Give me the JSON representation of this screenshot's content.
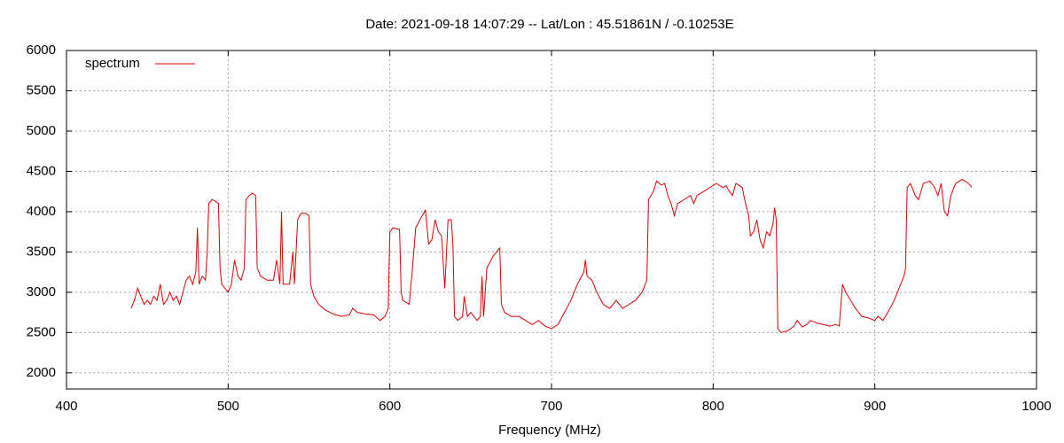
{
  "chart_data": {
    "type": "line",
    "title": "Date: 2021-09-18 14:07:29  --  Lat/Lon : 45.51861N / -0.10253E",
    "xlabel": "Frequency (MHz)",
    "xlim": [
      400,
      1000
    ],
    "xticks": [
      400,
      500,
      600,
      700,
      800,
      900,
      1000
    ],
    "ylim": [
      1800,
      6000
    ],
    "yticks": [
      2000,
      2500,
      3000,
      3500,
      4000,
      4500,
      5000,
      5500,
      6000
    ],
    "grid": true,
    "legend_position": "upper left",
    "series": [
      {
        "name": "spectrum",
        "color": "#dd0000",
        "x": [
          440,
          442,
          444,
          446,
          448,
          450,
          452,
          454,
          456,
          458,
          460,
          462,
          464,
          466,
          468,
          470,
          472,
          474,
          476,
          478,
          480,
          481,
          482,
          484,
          486,
          487,
          488,
          490,
          492,
          494,
          495,
          496,
          498,
          500,
          502,
          504,
          506,
          508,
          510,
          511,
          513,
          515,
          517,
          518,
          520,
          524,
          528,
          530,
          532,
          533,
          534,
          538,
          540,
          541,
          543,
          545,
          548,
          550,
          551,
          553,
          556,
          560,
          565,
          570,
          575,
          577,
          580,
          585,
          590,
          594,
          597,
          599,
          600,
          602,
          606,
          607,
          608,
          612,
          614,
          616,
          620,
          622,
          624,
          626,
          628,
          630,
          632,
          634,
          636,
          638,
          639,
          640,
          642,
          645,
          646,
          648,
          650,
          654,
          656,
          657,
          658,
          660,
          664,
          668,
          669,
          671,
          675,
          680,
          684,
          688,
          692,
          696,
          700,
          704,
          708,
          712,
          716,
          720,
          721,
          722,
          725,
          728,
          732,
          736,
          740,
          744,
          748,
          752,
          756,
          759,
          760,
          763,
          765,
          768,
          770,
          772,
          774,
          776,
          778,
          782,
          786,
          788,
          790,
          794,
          798,
          802,
          806,
          808,
          810,
          812,
          814,
          818,
          820,
          822,
          823,
          825,
          827,
          829,
          831,
          833,
          835,
          837,
          838,
          839,
          840,
          842,
          846,
          850,
          852,
          855,
          858,
          860,
          864,
          868,
          872,
          876,
          878,
          880,
          882,
          885,
          888,
          892,
          896,
          900,
          902,
          905,
          908,
          912,
          916,
          918,
          919,
          920,
          922,
          925,
          927,
          930,
          934,
          937,
          939,
          941,
          943,
          945,
          947,
          950,
          954,
          958,
          960
        ],
        "values": [
          2800,
          2900,
          3050,
          2950,
          2850,
          2900,
          2850,
          2950,
          2900,
          3100,
          2850,
          2900,
          3000,
          2900,
          2950,
          2850,
          3000,
          3150,
          3200,
          3100,
          3250,
          3800,
          3100,
          3200,
          3150,
          3500,
          4100,
          4150,
          4130,
          4100,
          3300,
          3100,
          3050,
          3000,
          3100,
          3400,
          3200,
          3150,
          3300,
          4150,
          4200,
          4230,
          4200,
          3300,
          3200,
          3150,
          3150,
          3400,
          3100,
          4000,
          3100,
          3100,
          3500,
          3100,
          3900,
          3980,
          3980,
          3950,
          3100,
          2950,
          2850,
          2780,
          2730,
          2700,
          2720,
          2800,
          2750,
          2730,
          2720,
          2650,
          2700,
          2800,
          3750,
          3800,
          3780,
          3000,
          2900,
          2850,
          3300,
          3800,
          3950,
          4020,
          3600,
          3650,
          3900,
          3750,
          3700,
          3050,
          3900,
          3900,
          3600,
          2700,
          2650,
          2700,
          2950,
          2700,
          2750,
          2650,
          2700,
          3200,
          2700,
          3300,
          3450,
          3550,
          2850,
          2750,
          2700,
          2700,
          2650,
          2600,
          2650,
          2580,
          2550,
          2600,
          2750,
          2900,
          3100,
          3250,
          3400,
          3200,
          3150,
          3000,
          2850,
          2800,
          2900,
          2800,
          2850,
          2900,
          3000,
          3150,
          4150,
          4250,
          4380,
          4330,
          4350,
          4200,
          4100,
          3950,
          4100,
          4150,
          4200,
          4100,
          4200,
          4250,
          4300,
          4350,
          4300,
          4320,
          4250,
          4200,
          4350,
          4300,
          4100,
          3950,
          3700,
          3750,
          3900,
          3650,
          3550,
          3750,
          3700,
          3850,
          4050,
          3900,
          2550,
          2500,
          2520,
          2580,
          2650,
          2570,
          2600,
          2650,
          2620,
          2600,
          2580,
          2600,
          2580,
          3100,
          3000,
          2900,
          2800,
          2700,
          2680,
          2650,
          2700,
          2650,
          2750,
          2900,
          3100,
          3200,
          3300,
          4300,
          4350,
          4200,
          4150,
          4350,
          4380,
          4300,
          4200,
          4350,
          4000,
          3950,
          4200,
          4350,
          4400,
          4350,
          4300
        ]
      }
    ]
  }
}
